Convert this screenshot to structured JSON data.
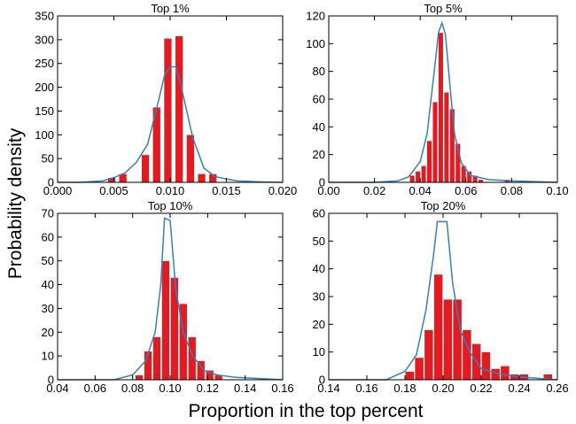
{
  "figure": {
    "ylabel": "Probability density",
    "xlabel": "Proportion in the top percent"
  },
  "colors": {
    "bar": "#e01b22",
    "bar_edge": "#ffffff",
    "line": "#3a7fb5",
    "axis": "#000000"
  },
  "chart_data": [
    {
      "type": "bar",
      "title": "Top 1%",
      "xlim": [
        0.0,
        0.02
      ],
      "ylim": [
        0,
        350
      ],
      "xticks": [
        "0.000",
        "0.005",
        "0.010",
        "0.015",
        "0.020"
      ],
      "xtick_values": [
        0.0,
        0.005,
        0.01,
        0.015,
        0.02
      ],
      "yticks": [
        "0",
        "50",
        "100",
        "150",
        "200",
        "250",
        "300",
        "350"
      ],
      "ytick_values": [
        0,
        50,
        100,
        150,
        200,
        250,
        300,
        350
      ],
      "bar_width": 0.0007,
      "bars": [
        {
          "x": 0.0048,
          "y": 10
        },
        {
          "x": 0.0058,
          "y": 18
        },
        {
          "x": 0.0078,
          "y": 58
        },
        {
          "x": 0.0088,
          "y": 158
        },
        {
          "x": 0.0098,
          "y": 303
        },
        {
          "x": 0.0108,
          "y": 308
        },
        {
          "x": 0.0118,
          "y": 100
        },
        {
          "x": 0.0128,
          "y": 18
        },
        {
          "x": 0.0138,
          "y": 18
        }
      ],
      "curve": [
        [
          0.0,
          0
        ],
        [
          0.002,
          0
        ],
        [
          0.004,
          3
        ],
        [
          0.005,
          10
        ],
        [
          0.006,
          20
        ],
        [
          0.007,
          42
        ],
        [
          0.008,
          80
        ],
        [
          0.009,
          175
        ],
        [
          0.0095,
          225
        ],
        [
          0.01,
          243
        ],
        [
          0.0105,
          243
        ],
        [
          0.011,
          200
        ],
        [
          0.012,
          95
        ],
        [
          0.013,
          30
        ],
        [
          0.014,
          12
        ],
        [
          0.015,
          7
        ],
        [
          0.016,
          3
        ],
        [
          0.018,
          1
        ],
        [
          0.02,
          0
        ]
      ]
    },
    {
      "type": "bar",
      "title": "Top 5%",
      "xlim": [
        0.0,
        0.1
      ],
      "ylim": [
        0,
        120
      ],
      "xticks": [
        "0.00",
        "0.02",
        "0.04",
        "0.06",
        "0.08",
        "0.10"
      ],
      "xtick_values": [
        0.0,
        0.02,
        0.04,
        0.06,
        0.08,
        0.1
      ],
      "yticks": [
        "0",
        "20",
        "40",
        "60",
        "80",
        "100",
        "120"
      ],
      "ytick_values": [
        0,
        20,
        40,
        60,
        80,
        100,
        120
      ],
      "bar_width": 0.0022,
      "bars": [
        {
          "x": 0.0365,
          "y": 5
        },
        {
          "x": 0.039,
          "y": 8
        },
        {
          "x": 0.0415,
          "y": 12
        },
        {
          "x": 0.044,
          "y": 30
        },
        {
          "x": 0.0465,
          "y": 58
        },
        {
          "x": 0.049,
          "y": 108
        },
        {
          "x": 0.0515,
          "y": 65
        },
        {
          "x": 0.054,
          "y": 53
        },
        {
          "x": 0.0565,
          "y": 28
        },
        {
          "x": 0.059,
          "y": 12
        },
        {
          "x": 0.0615,
          "y": 8
        },
        {
          "x": 0.064,
          "y": 5
        },
        {
          "x": 0.0665,
          "y": 2
        },
        {
          "x": 0.078,
          "y": 2
        }
      ],
      "curve": [
        [
          0.0,
          0
        ],
        [
          0.02,
          0
        ],
        [
          0.03,
          1
        ],
        [
          0.035,
          4
        ],
        [
          0.04,
          15
        ],
        [
          0.043,
          35
        ],
        [
          0.046,
          78
        ],
        [
          0.048,
          108
        ],
        [
          0.0495,
          115
        ],
        [
          0.051,
          107
        ],
        [
          0.053,
          70
        ],
        [
          0.055,
          35
        ],
        [
          0.058,
          14
        ],
        [
          0.062,
          5
        ],
        [
          0.07,
          2
        ],
        [
          0.08,
          1
        ],
        [
          0.1,
          0
        ]
      ]
    },
    {
      "type": "bar",
      "title": "Top 10%",
      "xlim": [
        0.04,
        0.16
      ],
      "ylim": [
        0,
        70
      ],
      "xticks": [
        "0.04",
        "0.06",
        "0.08",
        "0.10",
        "0.12",
        "0.14",
        "0.16"
      ],
      "xtick_values": [
        0.04,
        0.06,
        0.08,
        0.1,
        0.12,
        0.14,
        0.16
      ],
      "yticks": [
        "0",
        "10",
        "20",
        "30",
        "40",
        "50",
        "60",
        "70"
      ],
      "ytick_values": [
        0,
        10,
        20,
        30,
        40,
        50,
        60,
        70
      ],
      "bar_width": 0.0042,
      "bars": [
        {
          "x": 0.0835,
          "y": 2
        },
        {
          "x": 0.0882,
          "y": 12
        },
        {
          "x": 0.0929,
          "y": 18
        },
        {
          "x": 0.0976,
          "y": 50
        },
        {
          "x": 0.1023,
          "y": 43
        },
        {
          "x": 0.107,
          "y": 32
        },
        {
          "x": 0.1117,
          "y": 18
        },
        {
          "x": 0.1164,
          "y": 8
        },
        {
          "x": 0.1211,
          "y": 4
        },
        {
          "x": 0.1258,
          "y": 2
        }
      ],
      "curve": [
        [
          0.04,
          0
        ],
        [
          0.07,
          0
        ],
        [
          0.08,
          2
        ],
        [
          0.087,
          8
        ],
        [
          0.092,
          20
        ],
        [
          0.095,
          40
        ],
        [
          0.097,
          68
        ],
        [
          0.1,
          67
        ],
        [
          0.103,
          38
        ],
        [
          0.107,
          20
        ],
        [
          0.112,
          10
        ],
        [
          0.118,
          4
        ],
        [
          0.125,
          2
        ],
        [
          0.135,
          1
        ],
        [
          0.16,
          0
        ]
      ]
    },
    {
      "type": "bar",
      "title": "Top 20%",
      "xlim": [
        0.14,
        0.26
      ],
      "ylim": [
        0,
        60
      ],
      "xticks": [
        "0.14",
        "0.16",
        "0.18",
        "0.20",
        "0.22",
        "0.24",
        "0.26"
      ],
      "xtick_values": [
        0.14,
        0.16,
        0.18,
        0.2,
        0.22,
        0.24,
        0.26
      ],
      "yticks": [
        "0",
        "10",
        "20",
        "30",
        "40",
        "50",
        "60"
      ],
      "ytick_values": [
        0,
        10,
        20,
        30,
        40,
        50,
        60
      ],
      "bar_width": 0.0047,
      "bars": [
        {
          "x": 0.1825,
          "y": 3
        },
        {
          "x": 0.1875,
          "y": 8
        },
        {
          "x": 0.1925,
          "y": 18
        },
        {
          "x": 0.1975,
          "y": 38
        },
        {
          "x": 0.2025,
          "y": 29
        },
        {
          "x": 0.2075,
          "y": 29
        },
        {
          "x": 0.2125,
          "y": 18
        },
        {
          "x": 0.2175,
          "y": 13
        },
        {
          "x": 0.2225,
          "y": 10
        },
        {
          "x": 0.2275,
          "y": 4
        },
        {
          "x": 0.2325,
          "y": 5
        },
        {
          "x": 0.2375,
          "y": 2
        },
        {
          "x": 0.2425,
          "y": 2
        },
        {
          "x": 0.255,
          "y": 2
        }
      ],
      "curve": [
        [
          0.14,
          0
        ],
        [
          0.17,
          0
        ],
        [
          0.18,
          3
        ],
        [
          0.186,
          9
        ],
        [
          0.191,
          25
        ],
        [
          0.195,
          45
        ],
        [
          0.197,
          57
        ],
        [
          0.202,
          57
        ],
        [
          0.205,
          35
        ],
        [
          0.209,
          18
        ],
        [
          0.214,
          10
        ],
        [
          0.22,
          4
        ],
        [
          0.23,
          2
        ],
        [
          0.24,
          1
        ],
        [
          0.26,
          0
        ]
      ]
    }
  ]
}
